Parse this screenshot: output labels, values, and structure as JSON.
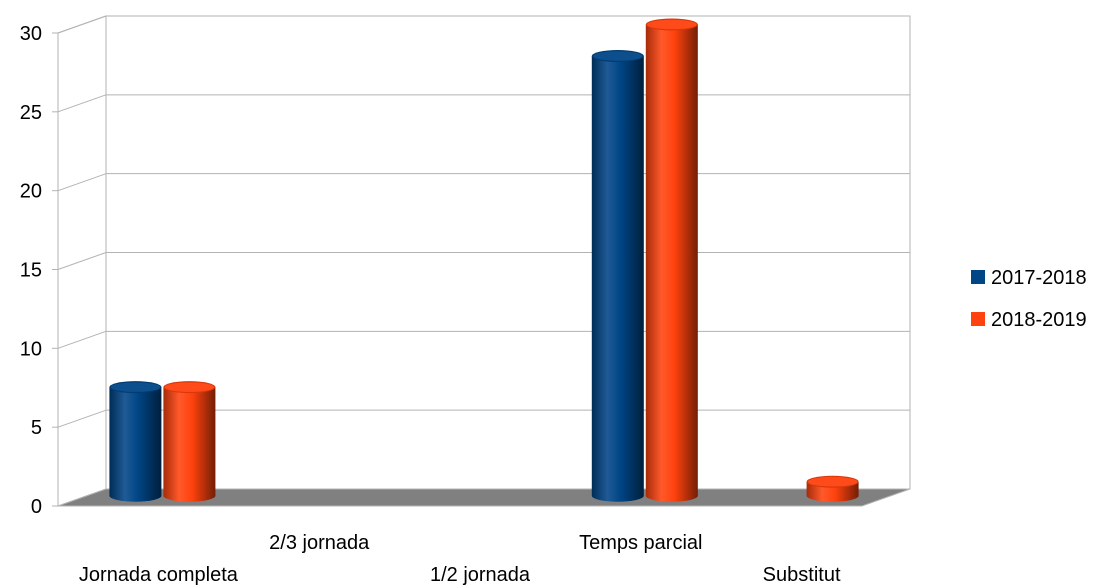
{
  "chart_data": {
    "type": "bar",
    "style": "3d-cylinder",
    "categories": [
      "Jornada completa",
      "2/3 jornada",
      "1/2 jornada",
      "Temps parcial",
      "Substitut"
    ],
    "series": [
      {
        "name": "2017-2018",
        "color": "#004586",
        "values": [
          7,
          0,
          0,
          28,
          0
        ]
      },
      {
        "name": "2018-2019",
        "color": "#ff420e",
        "values": [
          7,
          0,
          0,
          30,
          1
        ]
      }
    ],
    "ylim": [
      0,
      30
    ],
    "yticks": [
      0,
      5,
      10,
      15,
      20,
      25,
      30
    ],
    "ytick_labels": [
      "0",
      "5",
      "10",
      "15",
      "20",
      "25",
      "30"
    ],
    "grid": true,
    "legend": "right",
    "floor_color": "#808080"
  }
}
